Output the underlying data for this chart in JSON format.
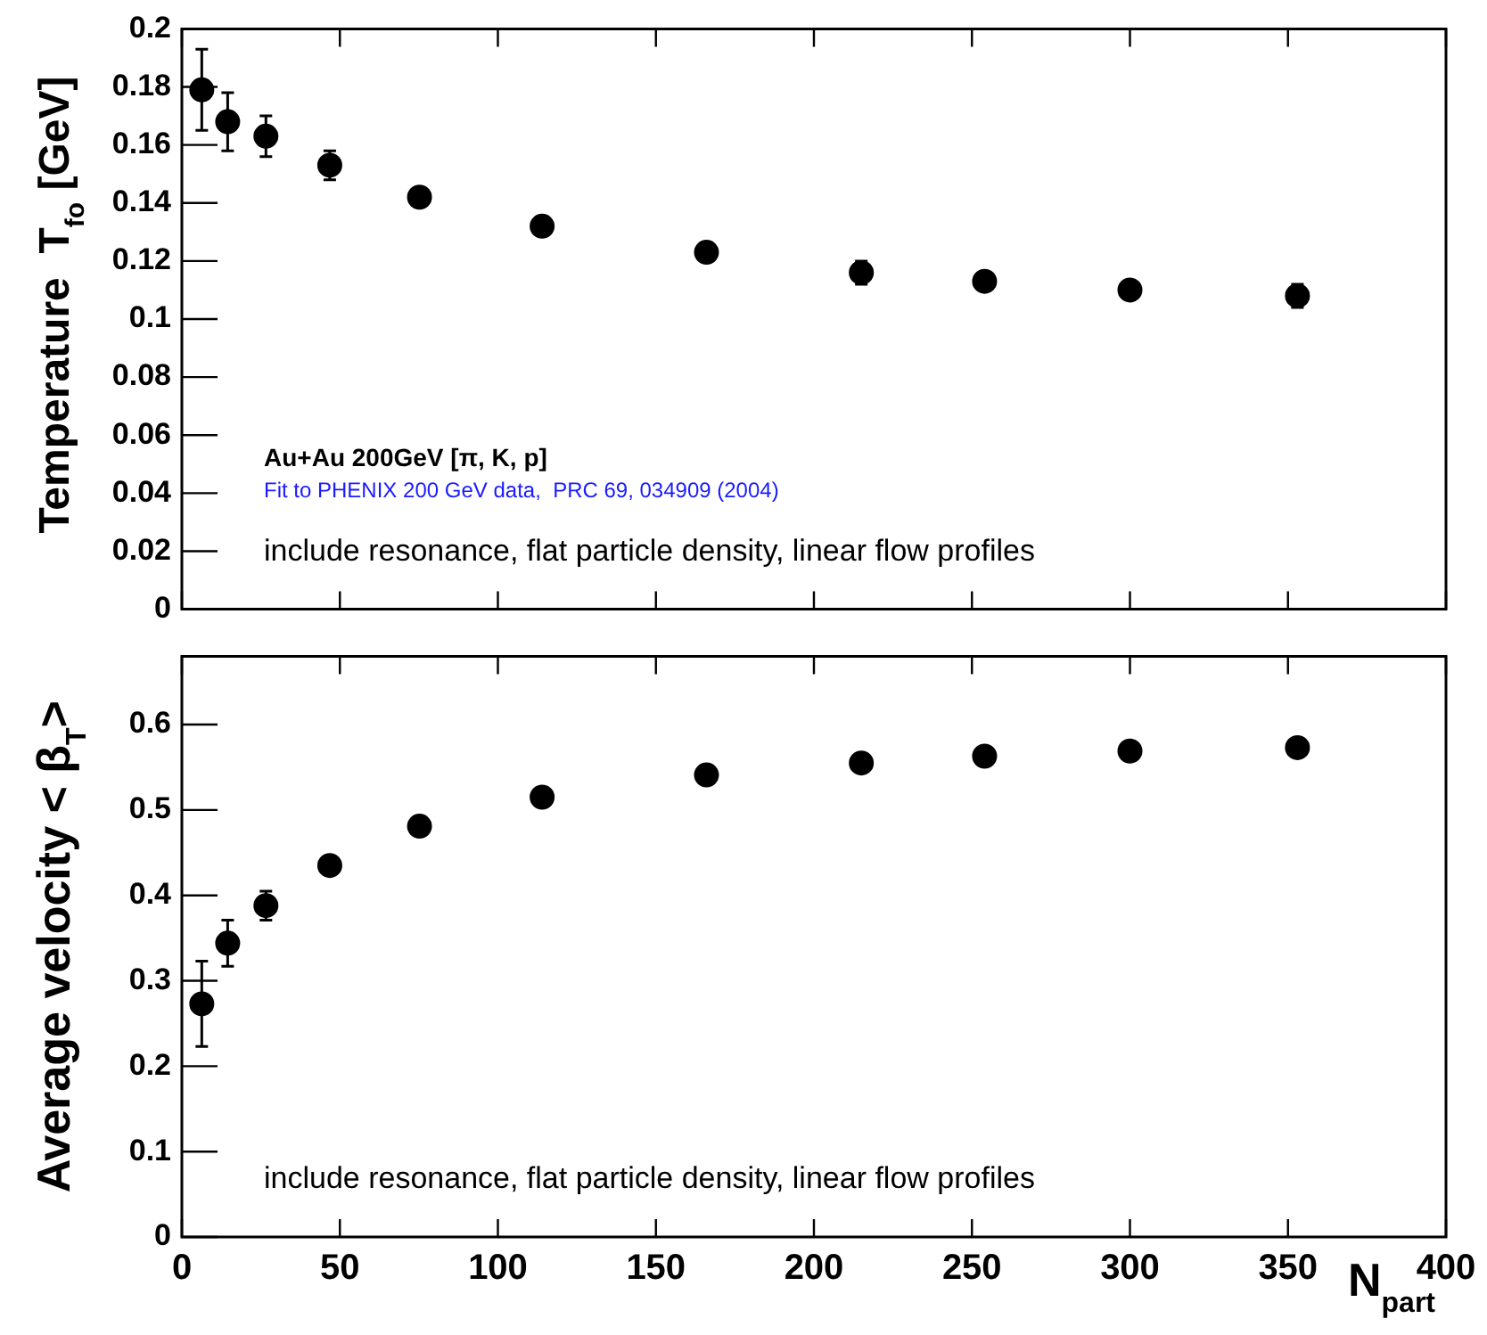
{
  "chart_data": [
    {
      "type": "scatter",
      "ylabel": "Temperature  T$_{fo}$ [GeV]",
      "x": [
        6.3,
        14.5,
        26.6,
        46.8,
        75.2,
        114,
        166,
        215,
        254,
        300,
        353
      ],
      "values": [
        0.179,
        0.168,
        0.163,
        0.153,
        0.142,
        0.132,
        0.123,
        0.116,
        0.113,
        0.11,
        0.108
      ],
      "errors": [
        0.014,
        0.01,
        0.007,
        0.005,
        null,
        null,
        null,
        0.004,
        null,
        null,
        0.004
      ],
      "color": "#000000",
      "marker": "circle",
      "xlim": [
        0,
        400
      ],
      "xticks": [
        0,
        50,
        100,
        150,
        200,
        250,
        300,
        350,
        400
      ],
      "ylim": [
        0,
        0.2
      ],
      "yticks": [
        0,
        0.02,
        0.04,
        0.06,
        0.08,
        0.1,
        0.12,
        0.14,
        0.16,
        0.18,
        0.2
      ],
      "tick_labels": "y",
      "annotations": [
        "Au+Au 200GeV [π, K, p]",
        "Fit to PHENIX 200 GeV data,  PRC 69, 034909 (2004)",
        "include resonance, flat particle density, linear flow profiles"
      ]
    },
    {
      "type": "scatter",
      "ylabel": "Average velocity < β$_{T}$>",
      "xlabel": "N$_{part}$",
      "x": [
        6.3,
        14.5,
        26.6,
        46.8,
        75.2,
        114,
        166,
        215,
        254,
        300,
        353
      ],
      "values": [
        0.273,
        0.344,
        0.388,
        0.435,
        0.481,
        0.515,
        0.541,
        0.555,
        0.563,
        0.569,
        0.573
      ],
      "errors": [
        0.05,
        0.027,
        0.017,
        null,
        null,
        null,
        null,
        null,
        null,
        null,
        null
      ],
      "color": "#000000",
      "marker": "circle",
      "xlim": [
        0,
        400
      ],
      "xticks": [
        0,
        50,
        100,
        150,
        200,
        250,
        300,
        350,
        400
      ],
      "ylim": [
        0,
        0.68
      ],
      "yticks": [
        0,
        0.1,
        0.2,
        0.3,
        0.4,
        0.5,
        0.6
      ],
      "annotations": [
        "include resonance, flat particle density, linear flow profiles"
      ]
    }
  ]
}
